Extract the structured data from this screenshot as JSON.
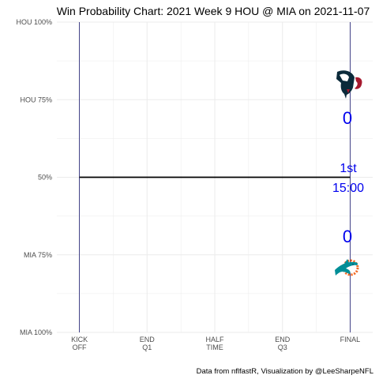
{
  "chart_data": {
    "type": "line",
    "title": "Win Probability Chart: 2021 Week 9 HOU @ MIA on 2021-11-07",
    "caption": "Data from nflfastR, Visualization by @LeeSharpeNFL",
    "xlabel": "",
    "ylabel": "",
    "y_ticks": [
      {
        "value": 1.0,
        "label": "HOU 100%"
      },
      {
        "value": 0.75,
        "label": "HOU 75%"
      },
      {
        "value": 0.5,
        "label": "50%"
      },
      {
        "value": 0.25,
        "label": "MIA 75%"
      },
      {
        "value": 0.0,
        "label": "MIA 100%"
      }
    ],
    "x_ticks": [
      {
        "value": 0,
        "lines": [
          "KICK",
          "OFF"
        ]
      },
      {
        "value": 900,
        "lines": [
          "END",
          "Q1"
        ]
      },
      {
        "value": 1800,
        "lines": [
          "HALF",
          "TIME"
        ]
      },
      {
        "value": 2700,
        "lines": [
          "END",
          "Q3"
        ]
      },
      {
        "value": 3600,
        "lines": [
          "FINAL"
        ]
      }
    ],
    "xlim": [
      -300,
      3900
    ],
    "ylim": [
      0,
      1
    ],
    "grid": true,
    "series": [
      {
        "x": [
          0,
          3600
        ],
        "y": [
          0.5,
          0.5
        ],
        "color": "#000000"
      }
    ],
    "game_bounds": [
      0,
      3600
    ],
    "home_team": {
      "abbr": "MIA",
      "score": "0",
      "logo": "dolphins-logo-icon"
    },
    "away_team": {
      "abbr": "HOU",
      "score": "0",
      "logo": "texans-logo-icon"
    },
    "clock": {
      "quarter": "1st",
      "time": "15:00"
    },
    "colors": {
      "bound_line": "#191970",
      "score_text": "#0000ee",
      "grid": "#ebebeb"
    }
  }
}
